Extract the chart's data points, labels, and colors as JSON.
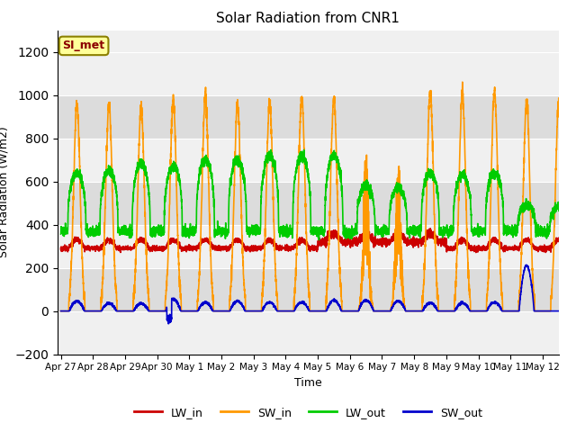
{
  "title": "Solar Radiation from CNR1",
  "xlabel": "Time",
  "ylabel": "Solar Radiation (W/m2)",
  "ylim": [
    -200,
    1300
  ],
  "yticks": [
    -200,
    0,
    200,
    400,
    600,
    800,
    1000,
    1200
  ],
  "background_color": "#ffffff",
  "plot_bg_color": "#f0f0f0",
  "band_light": "#f0f0f0",
  "band_dark": "#dcdcdc",
  "legend_label": "SI_met",
  "legend_box_color": "#ffff99",
  "legend_box_edge": "#8B8000",
  "series": {
    "LW_in": {
      "color": "#cc0000",
      "lw": 1.2
    },
    "SW_in": {
      "color": "#ff9900",
      "lw": 1.2
    },
    "LW_out": {
      "color": "#00cc00",
      "lw": 1.2
    },
    "SW_out": {
      "color": "#0000cc",
      "lw": 1.2
    }
  },
  "x_tick_labels": [
    "Apr 27",
    "Apr 28",
    "Apr 29",
    "Apr 30",
    "May 1",
    "May 2",
    "May 3",
    "May 4",
    "May 5",
    "May 6",
    "May 7",
    "May 8",
    "May 9",
    "May 10",
    "May 11",
    "May 12"
  ],
  "x_tick_positions": [
    0,
    1,
    2,
    3,
    4,
    5,
    6,
    7,
    8,
    9,
    10,
    11,
    12,
    13,
    14,
    15
  ],
  "n_days": 16,
  "pts_per_day": 288
}
